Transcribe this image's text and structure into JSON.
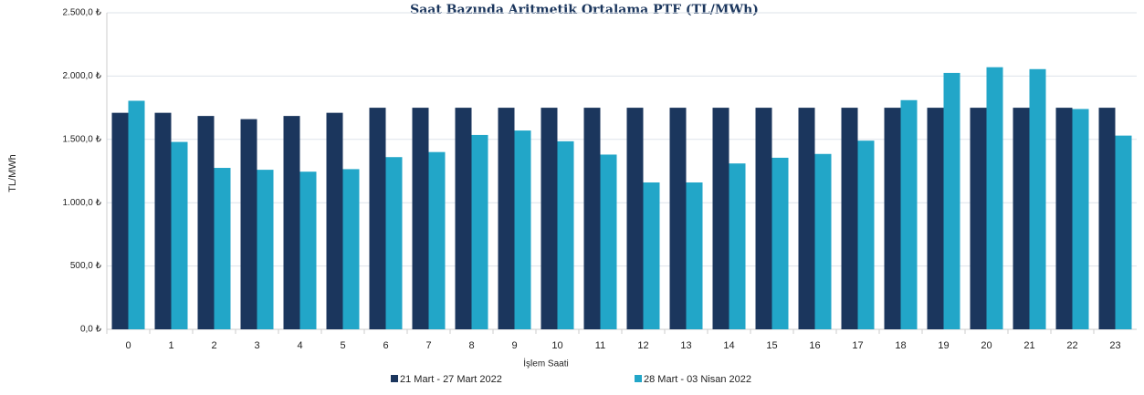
{
  "chart_data": {
    "type": "bar",
    "title": "Saat Bazında Aritmetik Ortalama PTF (TL/MWh)",
    "y_label": "TL/MWh",
    "x_label": "İşlem Saati",
    "categories": [
      "0",
      "1",
      "2",
      "3",
      "4",
      "5",
      "6",
      "7",
      "8",
      "9",
      "10",
      "11",
      "12",
      "13",
      "14",
      "15",
      "16",
      "17",
      "18",
      "19",
      "20",
      "21",
      "22",
      "23"
    ],
    "series": [
      {
        "name": "21 Mart - 27 Mart 2022",
        "color": "#1b365d",
        "values": [
          1710,
          1710,
          1685,
          1660,
          1685,
          1710,
          1750,
          1750,
          1750,
          1750,
          1750,
          1750,
          1750,
          1750,
          1750,
          1750,
          1750,
          1750,
          1750,
          1750,
          1750,
          1750,
          1750,
          1750
        ]
      },
      {
        "name": "28 Mart - 03 Nisan 2022",
        "color": "#22a6c8",
        "values": [
          1805,
          1480,
          1275,
          1260,
          1245,
          1265,
          1360,
          1400,
          1535,
          1570,
          1485,
          1380,
          1160,
          1160,
          1310,
          1355,
          1385,
          1490,
          1810,
          2025,
          2070,
          2055,
          1740,
          1530
        ]
      }
    ],
    "ylim": [
      0,
      2500
    ],
    "yticks": [
      {
        "value": 0,
        "label": "0,0 ₺"
      },
      {
        "value": 500,
        "label": "500,0 ₺"
      },
      {
        "value": 1000,
        "label": "1.000,0 ₺"
      },
      {
        "value": 1500,
        "label": "1.500,0 ₺"
      },
      {
        "value": 2000,
        "label": "2.000,0 ₺"
      },
      {
        "value": 2500,
        "label": "2.500,0 ₺"
      }
    ],
    "grid": true,
    "legend": "bottom"
  }
}
